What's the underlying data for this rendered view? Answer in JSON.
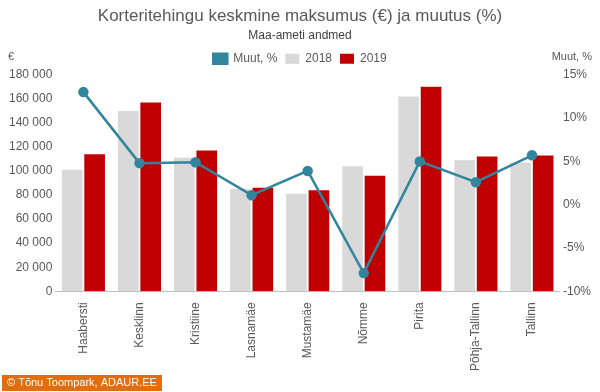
{
  "chart_data": {
    "type": "bar",
    "title": "Korteritehingu keskmine maksumus (€) ja muutus (%)",
    "subtitle": "Maa-ameti andmed",
    "ylabel": "€",
    "y2label": "Muut, %",
    "annotations": [
      "© Tõnu Toompark, ADAUR.EE"
    ],
    "categories": [
      "Haabersti",
      "Kesklinn",
      "Kristiine",
      "Lasnamäe",
      "Mustamäe",
      "Nõmme",
      "Pirita",
      "Põhja-Tallinn",
      "Tallinn"
    ],
    "series": [
      {
        "name": "2018",
        "color": "#d9d9d9",
        "values": [
          101000,
          150000,
          111000,
          85000,
          81000,
          104000,
          162000,
          109000,
          107000
        ]
      },
      {
        "name": "2019",
        "color": "#c00000",
        "values": [
          114000,
          157000,
          117000,
          86000,
          84000,
          96000,
          170000,
          112000,
          113000
        ]
      },
      {
        "name": "Muut, %",
        "type": "line",
        "axis": "y2",
        "color": "#31859c",
        "marker": "circle",
        "values": [
          13.0,
          4.8,
          4.9,
          1.1,
          3.9,
          -7.9,
          5.0,
          2.6,
          5.7
        ]
      }
    ],
    "ylim": [
      0,
      180000
    ],
    "yticks": [
      0,
      {
        "value": 20000,
        "label": "20 000"
      },
      {
        "value": 40000,
        "label": "40 000"
      },
      {
        "value": 60000,
        "label": "60 000"
      },
      {
        "value": 80000,
        "label": "80 000"
      },
      {
        "value": 100000,
        "label": "100 000"
      },
      {
        "value": 120000,
        "label": "120 000"
      },
      {
        "value": 140000,
        "label": "140 000"
      },
      {
        "value": 160000,
        "label": "160 000"
      },
      {
        "value": 180000,
        "label": "180 000"
      }
    ],
    "y2lim": [
      -10,
      15
    ],
    "y2ticks": [
      {
        "value": -10,
        "label": "-10%"
      },
      {
        "value": -5,
        "label": "-5%"
      },
      {
        "value": 0,
        "label": "0%"
      },
      {
        "value": 5,
        "label": "5%"
      },
      {
        "value": 10,
        "label": "10%"
      },
      {
        "value": 15,
        "label": "15%"
      }
    ],
    "grid": false,
    "legend": "top"
  }
}
